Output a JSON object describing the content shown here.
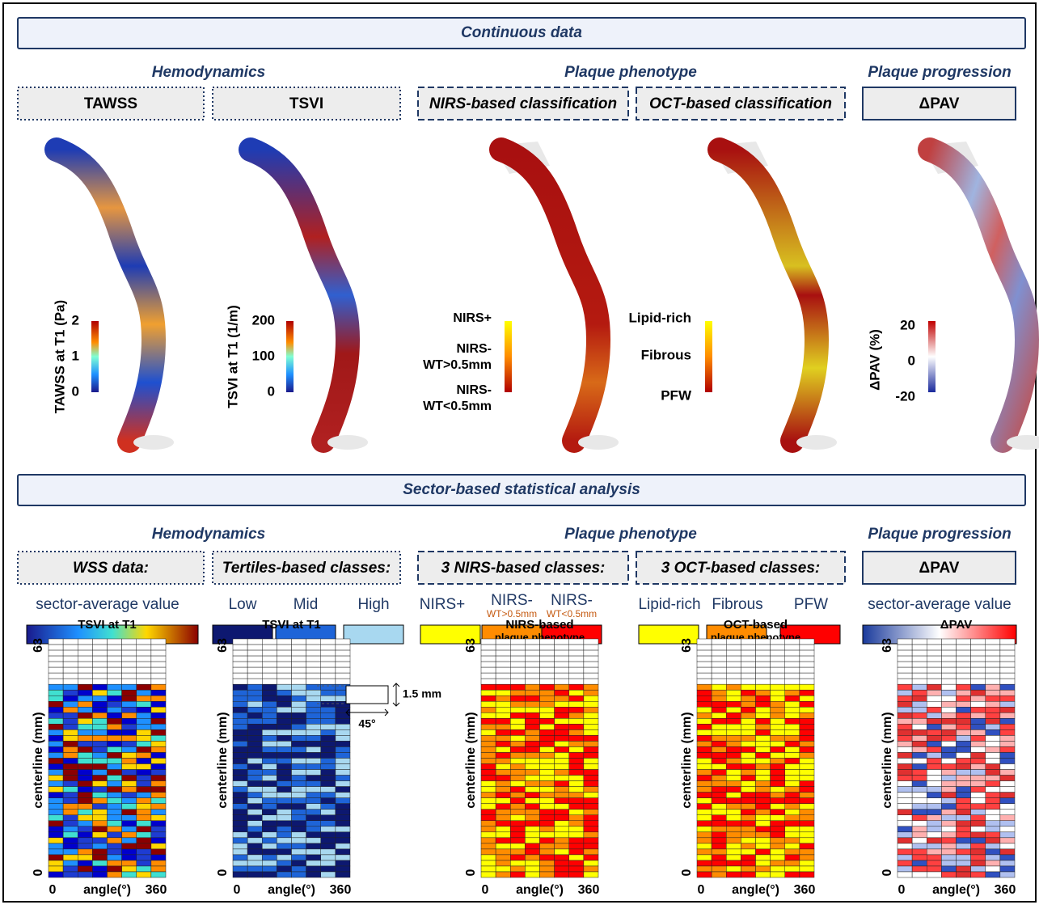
{
  "banners": {
    "continuous": "Continuous data",
    "sector": "Sector-based statistical analysis"
  },
  "continuous": {
    "groups": [
      "Hemodynamics",
      "Plaque phenotype",
      "Plaque progression"
    ],
    "boxes": [
      "TAWSS",
      "TSVI",
      "NIRS-based classification",
      "OCT-based classification",
      "ΔPAV"
    ],
    "colorbars": {
      "tawss": {
        "label": "TAWSS at T1 (Pa)",
        "ticks": [
          2,
          1,
          0
        ]
      },
      "tsvi": {
        "label": "TSVI at T1 (1/m)",
        "ticks": [
          200,
          100,
          0
        ]
      },
      "nirs": {
        "labels": [
          "NIRS+",
          "NIRS-",
          "WT>0.5mm",
          "NIRS-",
          "WT<0.5mm"
        ]
      },
      "oct": {
        "labels": [
          "Lipid-rich",
          "Fibrous",
          "PFW"
        ]
      },
      "dpav": {
        "label": "ΔPAV (%)",
        "ticks": [
          20,
          0,
          -20
        ]
      }
    }
  },
  "sector": {
    "groups": [
      "Hemodynamics",
      "Plaque phenotype",
      "Plaque progression"
    ],
    "boxes": [
      "WSS data:",
      "Tertiles-based classes:",
      "3 NIRS-based classes:",
      "3 OCT-based classes:",
      "ΔPAV"
    ],
    "legend": {
      "wss": "sector-average value",
      "tertiles": [
        "Low",
        "Mid",
        "High"
      ],
      "nirs": [
        "NIRS+",
        "NIRS-",
        "WT>0.5mm",
        "NIRS-",
        "WT<0.5mm"
      ],
      "oct": [
        "Lipid-rich",
        "Fibrous",
        "PFW"
      ],
      "dpav": "sector-average value"
    },
    "heatmaps": [
      {
        "title": "TSVI at T1"
      },
      {
        "title": "TSVI at T1"
      },
      {
        "title": "NIRS-based",
        "subtitle": "plaque phenotype"
      },
      {
        "title": "OCT-based",
        "subtitle": "plaque phenotype"
      },
      {
        "title": "ΔPAV"
      }
    ],
    "axes": {
      "ylabel": "centerline (mm)",
      "xlabel": "angle(°)",
      "ymax": 63,
      "ymin": 0,
      "xmin": 0,
      "xmax": 360
    },
    "annotation": {
      "height": "1.5 mm",
      "angle": "45°"
    }
  }
}
